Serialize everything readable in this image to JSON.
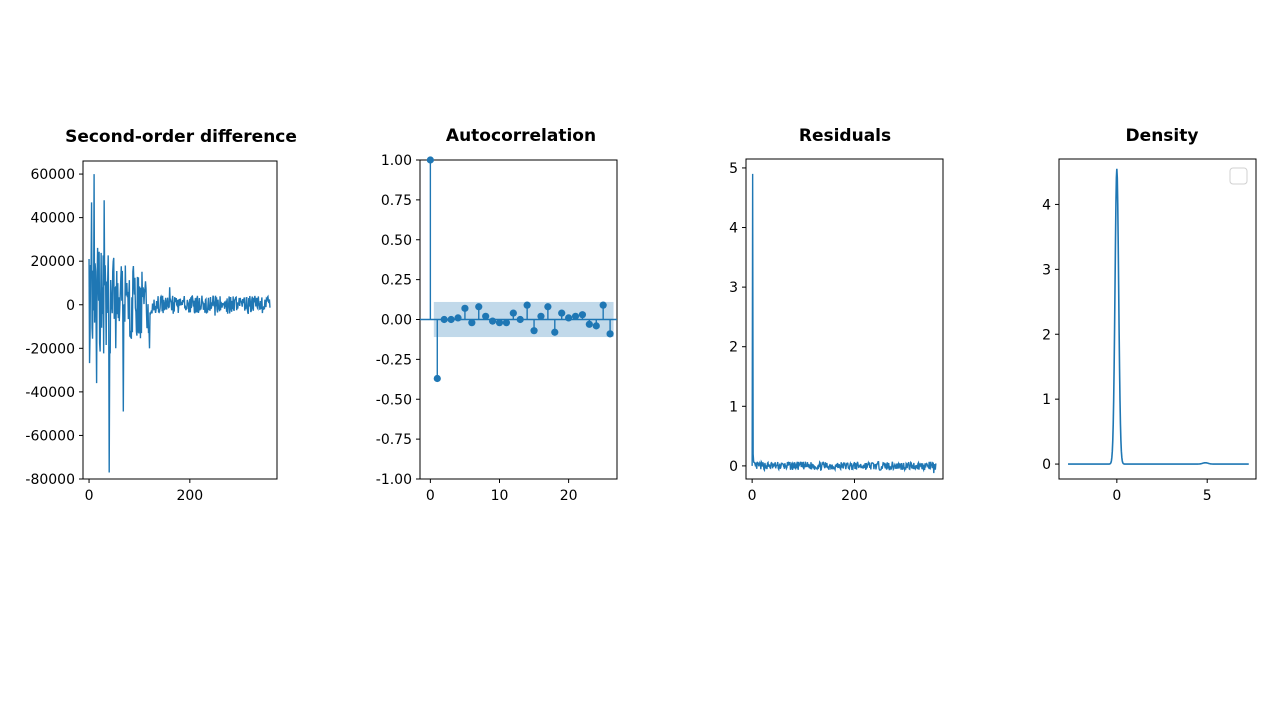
{
  "colors": {
    "series": "#1f77b4",
    "band": "#1f77b4",
    "frame": "#000000"
  },
  "chart_data": [
    {
      "type": "line",
      "title": "Second-order difference",
      "xlim": [
        -12,
        373
      ],
      "ylim": [
        -80000,
        66000
      ],
      "xticks": [
        0,
        200
      ],
      "yticks": [
        60000,
        40000,
        20000,
        0,
        -20000,
        -40000,
        -60000,
        -80000
      ],
      "xtick_labels": [
        "0",
        "200"
      ],
      "ytick_labels": [
        "60000",
        "40000",
        "20000",
        "0",
        "-20000",
        "-40000",
        "-60000",
        "-80000"
      ],
      "n_points": 360,
      "shape": "oscillating series around 0, very large early swings (peak ~60000 near x=10, trough ~-77000 near x=40), amplitude shrinking to about ±5000 after x≈120",
      "key_points": [
        [
          0,
          21000
        ],
        [
          5,
          47000
        ],
        [
          10,
          60000
        ],
        [
          15,
          -36000
        ],
        [
          30,
          48000
        ],
        [
          40,
          52000
        ],
        [
          40,
          -77000
        ],
        [
          68,
          -49000
        ],
        [
          120,
          -20000
        ],
        [
          160,
          8000
        ],
        [
          250,
          -5000
        ],
        [
          360,
          0
        ]
      ],
      "grid": false,
      "legend": "none"
    },
    {
      "type": "stem",
      "title": "Autocorrelation",
      "xlim": [
        -1.5,
        27
      ],
      "ylim": [
        -1.0,
        1.0
      ],
      "xticks": [
        0,
        10,
        20
      ],
      "yticks": [
        1.0,
        0.75,
        0.5,
        0.25,
        0.0,
        -0.25,
        -0.5,
        -0.75,
        -1.0
      ],
      "xtick_labels": [
        "0",
        "10",
        "20"
      ],
      "ytick_labels": [
        "1.00",
        "0.75",
        "0.50",
        "0.25",
        "0.00",
        "-0.25",
        "-0.50",
        "-0.75",
        "-1.00"
      ],
      "lags": [
        0,
        1,
        2,
        3,
        4,
        5,
        6,
        7,
        8,
        9,
        10,
        11,
        12,
        13,
        14,
        15,
        16,
        17,
        18,
        19,
        20,
        21,
        22,
        23,
        24,
        25,
        26
      ],
      "values": [
        1.0,
        -0.37,
        0.0,
        0.0,
        0.01,
        0.07,
        -0.02,
        0.08,
        0.02,
        -0.01,
        -0.02,
        -0.02,
        0.04,
        0.0,
        0.09,
        -0.07,
        0.02,
        0.08,
        -0.08,
        0.04,
        0.01,
        0.02,
        0.03,
        -0.03,
        -0.04,
        0.09,
        -0.09
      ],
      "confidence_band": {
        "x_start": 0.5,
        "x_end": 26.5,
        "upper": 0.11,
        "lower": -0.11
      },
      "grid": false,
      "legend": "none"
    },
    {
      "type": "line",
      "title": "Residuals",
      "xlim": [
        -12,
        373
      ],
      "ylim": [
        -0.22,
        5.15
      ],
      "xticks": [
        0,
        200
      ],
      "yticks": [
        5,
        4,
        3,
        2,
        1,
        0
      ],
      "xtick_labels": [
        "0",
        "200"
      ],
      "ytick_labels": [
        "5",
        "4",
        "3",
        "2",
        "1",
        "0"
      ],
      "n_points": 360,
      "shape": "single spike to ~4.9 at x=1, then small noise around 0 (about ±0.1) for the rest",
      "key_points": [
        [
          0,
          0.0
        ],
        [
          1,
          4.9
        ],
        [
          3,
          0.2
        ],
        [
          6,
          0.1
        ],
        [
          120,
          -0.1
        ],
        [
          355,
          -0.12
        ],
        [
          358,
          0.05
        ]
      ],
      "grid": false,
      "legend": "none"
    },
    {
      "type": "line",
      "title": "Density",
      "xlim": [
        -3.2,
        7.7
      ],
      "ylim": [
        -0.23,
        4.7
      ],
      "xticks": [
        0,
        5
      ],
      "yticks": [
        4,
        3,
        2,
        1,
        0
      ],
      "xtick_labels": [
        "0",
        "5"
      ],
      "ytick_labels": [
        "4",
        "3",
        "2",
        "1",
        "0"
      ],
      "shape": "narrow peak ~4.55 at x=0, flat near 0 elsewhere, tiny bump near x=5",
      "peaks": [
        {
          "x": 0.0,
          "height": 4.55,
          "width": 0.1
        },
        {
          "x": 4.9,
          "height": 0.02,
          "width": 0.15
        }
      ],
      "x_range": [
        -2.7,
        7.3
      ],
      "grid": false,
      "legend": "top-right (empty)"
    }
  ]
}
